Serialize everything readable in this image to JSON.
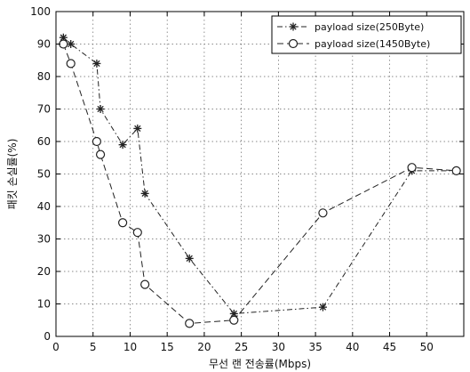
{
  "chart_data": {
    "type": "line",
    "title": "",
    "xlabel": "무선 랜 전송률(Mbps)",
    "ylabel": "패킷 손실률(%)",
    "xlim": [
      0,
      55
    ],
    "ylim": [
      0,
      100
    ],
    "xticks": [
      0,
      5,
      10,
      15,
      20,
      25,
      30,
      35,
      40,
      45,
      50
    ],
    "yticks": [
      0,
      10,
      20,
      30,
      40,
      50,
      60,
      70,
      80,
      90,
      100
    ],
    "grid": true,
    "legend_position": "top-right",
    "series": [
      {
        "name": "payload size(250Byte)",
        "marker": "star",
        "line_style": "dash-dot",
        "color": "#222222",
        "x": [
          1,
          2,
          5.5,
          6,
          9,
          11,
          12,
          18,
          24,
          36,
          48,
          54
        ],
        "y": [
          92,
          90,
          84,
          70,
          59,
          64,
          44,
          24,
          7,
          9,
          51,
          51
        ]
      },
      {
        "name": "payload size(1450Byte)",
        "marker": "circle",
        "line_style": "dashed",
        "color": "#222222",
        "x": [
          1,
          2,
          5.5,
          6,
          9,
          11,
          12,
          18,
          24,
          36,
          48,
          54
        ],
        "y": [
          90,
          84,
          60,
          56,
          35,
          32,
          16,
          4,
          5,
          38,
          52,
          51
        ]
      }
    ]
  }
}
